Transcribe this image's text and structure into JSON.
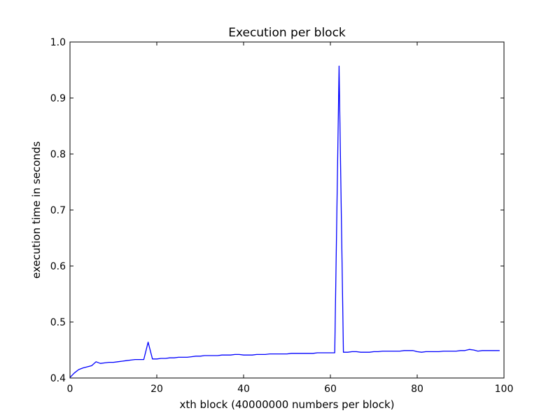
{
  "chart_data": {
    "type": "line",
    "title": "Execution per block",
    "xlabel": "xth block (40000000 numbers per block)",
    "ylabel": "execution time in seconds",
    "xlim": [
      0,
      100
    ],
    "ylim": [
      0.4,
      1.0
    ],
    "xticks": [
      0,
      20,
      40,
      60,
      80,
      100
    ],
    "yticks": [
      0.4,
      0.5,
      0.6,
      0.7,
      0.8,
      0.9,
      1.0
    ],
    "xtick_labels": [
      "0",
      "20",
      "40",
      "60",
      "80",
      "100"
    ],
    "ytick_labels": [
      "0.4",
      "0.5",
      "0.6",
      "0.7",
      "0.8",
      "0.9",
      "1.0"
    ],
    "grid": false,
    "line_color": "#0000ff",
    "series": [
      {
        "x": [
          0,
          1,
          2,
          3,
          4,
          5,
          6,
          7,
          8,
          9,
          10,
          11,
          12,
          13,
          14,
          15,
          16,
          17,
          18,
          19,
          20,
          21,
          22,
          23,
          24,
          25,
          26,
          27,
          28,
          29,
          30,
          31,
          32,
          33,
          34,
          35,
          36,
          37,
          38,
          39,
          40,
          41,
          42,
          43,
          44,
          45,
          46,
          47,
          48,
          49,
          50,
          51,
          52,
          53,
          54,
          55,
          56,
          57,
          58,
          59,
          60,
          61,
          62,
          63,
          64,
          65,
          66,
          67,
          68,
          69,
          70,
          71,
          72,
          73,
          74,
          75,
          76,
          77,
          78,
          79,
          80,
          81,
          82,
          83,
          84,
          85,
          86,
          87,
          88,
          89,
          90,
          91,
          92,
          93,
          94,
          95,
          96,
          97,
          98,
          99
        ],
        "y": [
          0.401,
          0.409,
          0.415,
          0.418,
          0.42,
          0.422,
          0.429,
          0.426,
          0.427,
          0.428,
          0.428,
          0.429,
          0.43,
          0.431,
          0.432,
          0.433,
          0.433,
          0.433,
          0.464,
          0.434,
          0.434,
          0.435,
          0.435,
          0.436,
          0.436,
          0.437,
          0.437,
          0.437,
          0.438,
          0.439,
          0.439,
          0.44,
          0.44,
          0.44,
          0.44,
          0.441,
          0.441,
          0.441,
          0.442,
          0.442,
          0.441,
          0.441,
          0.441,
          0.442,
          0.442,
          0.442,
          0.443,
          0.443,
          0.443,
          0.443,
          0.443,
          0.444,
          0.444,
          0.444,
          0.444,
          0.444,
          0.444,
          0.445,
          0.445,
          0.445,
          0.445,
          0.445,
          0.957,
          0.446,
          0.446,
          0.447,
          0.447,
          0.446,
          0.446,
          0.446,
          0.447,
          0.447,
          0.448,
          0.448,
          0.448,
          0.448,
          0.448,
          0.449,
          0.449,
          0.449,
          0.447,
          0.446,
          0.447,
          0.447,
          0.447,
          0.447,
          0.448,
          0.448,
          0.448,
          0.448,
          0.449,
          0.449,
          0.451,
          0.45,
          0.448,
          0.449,
          0.449,
          0.449,
          0.449,
          0.449
        ]
      }
    ]
  }
}
